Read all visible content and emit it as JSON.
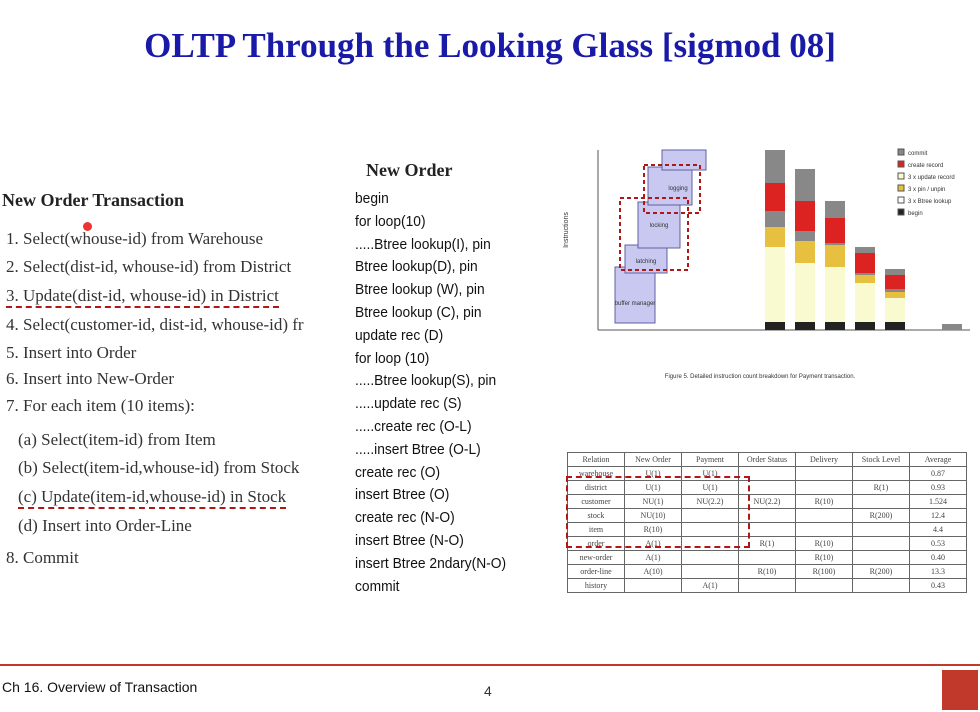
{
  "title": "OLTP Through the Looking Glass [sigmod 08]",
  "left": {
    "heading": "New Order Transaction",
    "items": [
      "1.  Select(whouse-id) from Warehouse",
      "2.  Select(dist-id, whouse-id) from District",
      "3.  Update(dist-id, whouse-id) in District",
      "4.  Select(customer-id, dist-id, whouse-id) fr",
      "5.  Insert into Order",
      "6.  Insert into New-Order",
      "7.  For each item (10 items):",
      "(a)  Select(item-id) from Item",
      "(b)  Select(item-id,whouse-id) from Stock",
      "(c)  Update(item-id,whouse-id) in Stock",
      "(d)  Insert into Order-Line",
      "8.  Commit"
    ]
  },
  "middle": {
    "heading": "New Order",
    "lines": [
      "begin",
      "for loop(10)",
      ".....Btree lookup(I), pin",
      "Btree lookup(D), pin",
      "Btree lookup (W), pin",
      "Btree lookup (C), pin",
      "update rec (D)",
      "for loop (10)",
      ".....Btree lookup(S), pin",
      ".....update rec (S)",
      ".....create rec (O-L)",
      ".....insert Btree (O-L)",
      "create rec (O)",
      "insert Btree (O)",
      "create rec (N-O)",
      "insert Btree (N-O)",
      "insert Btree 2ndary(N-O)",
      "commit"
    ]
  },
  "figure": {
    "y_label": "Instructions",
    "legend": [
      "commit",
      "create record",
      "3 x update record",
      "3 x pin / unpin",
      "3 x Btree lookup",
      "begin"
    ],
    "boxes": [
      "buffer manager",
      "latching",
      "locking",
      "logging"
    ],
    "caption": "Figure 5.  Detailed instruction count breakdown for Payment transaction."
  },
  "table": {
    "header": [
      "Relation",
      "New Order",
      "Payment",
      "Order Status",
      "Delivery",
      "Stock Level",
      "Average"
    ],
    "rows": [
      [
        "warehouse",
        "U(1)",
        "U(1)",
        null,
        null,
        null,
        "0.87"
      ],
      [
        "district",
        "U(1)",
        "U(1)",
        null,
        null,
        "R(1)",
        "0.93"
      ],
      [
        "customer",
        "NU(1)",
        "NU(2.2)",
        "NU(2.2)",
        "R(10)",
        null,
        "1.524"
      ],
      [
        "stock",
        "NU(10)",
        null,
        null,
        null,
        "R(200)",
        "12.4"
      ],
      [
        "item",
        "R(10)",
        null,
        null,
        null,
        null,
        "4.4"
      ],
      [
        "order",
        "A(1)",
        null,
        "R(1)",
        "R(10)",
        null,
        "0.53"
      ],
      [
        "new-order",
        "A(1)",
        null,
        null,
        "R(10)",
        null,
        "0.40"
      ],
      [
        "order-line",
        "A(10)",
        null,
        "R(10)",
        "R(100)",
        "R(200)",
        "13.3"
      ],
      [
        "history",
        null,
        "A(1)",
        null,
        null,
        null,
        "0.43"
      ]
    ]
  },
  "footer": {
    "text": "Ch 16. Overview of Transaction",
    "page": "4"
  }
}
